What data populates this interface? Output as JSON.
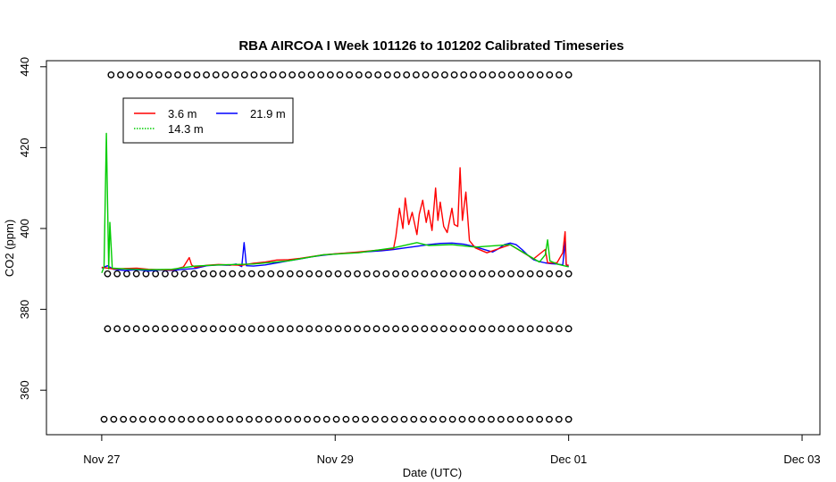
{
  "chart_data": {
    "type": "line",
    "title": "RBA AIRCOA I  Week 101126 to 101202  Calibrated Timeseries",
    "xlabel": "Date (UTC)",
    "ylabel": "CO2 (ppm)",
    "xlim": [
      "Nov 26 12:40",
      "Dec 03 03:40"
    ],
    "ylim": [
      349.0,
      441.5
    ],
    "x_ticks": [
      {
        "label": "Nov 27",
        "value": 0
      },
      {
        "label": "Nov 29",
        "value": 2
      },
      {
        "label": "Dec 01",
        "value": 4
      },
      {
        "label": "Dec 03",
        "value": 6
      }
    ],
    "y_ticks": [
      360,
      380,
      400,
      420,
      440
    ],
    "legend": {
      "placement": "top-left",
      "entries": [
        {
          "label": "3.6 m",
          "color": "#ff0000",
          "style": "solid"
        },
        {
          "label": "21.9 m",
          "color": "#0000ff",
          "style": "solid"
        },
        {
          "label": "14.3 m",
          "color": "#00cc00",
          "style": "dotted"
        }
      ]
    },
    "series": [
      {
        "name": "21.9 m",
        "color": "#0000ff",
        "points": [
          [
            0.0,
            390.2
          ],
          [
            0.05,
            390.8
          ],
          [
            0.1,
            389.9
          ],
          [
            0.2,
            389.6
          ],
          [
            0.3,
            389.8
          ],
          [
            0.4,
            389.5
          ],
          [
            0.5,
            389.7
          ],
          [
            0.6,
            389.6
          ],
          [
            0.7,
            389.9
          ],
          [
            0.8,
            390.1
          ],
          [
            0.9,
            390.8
          ],
          [
            1.0,
            391.0
          ],
          [
            1.1,
            390.9
          ],
          [
            1.15,
            391.2
          ],
          [
            1.2,
            390.6
          ],
          [
            1.22,
            396.5
          ],
          [
            1.24,
            390.8
          ],
          [
            1.3,
            390.7
          ],
          [
            1.4,
            391.0
          ],
          [
            1.5,
            391.5
          ],
          [
            1.6,
            392.0
          ],
          [
            1.7,
            392.5
          ],
          [
            1.8,
            393.0
          ],
          [
            1.9,
            393.4
          ],
          [
            2.0,
            393.7
          ],
          [
            2.1,
            393.9
          ],
          [
            2.2,
            394.1
          ],
          [
            2.3,
            394.3
          ],
          [
            2.4,
            394.5
          ],
          [
            2.5,
            394.8
          ],
          [
            2.6,
            395.2
          ],
          [
            2.7,
            395.6
          ],
          [
            2.8,
            396.0
          ],
          [
            2.9,
            396.3
          ],
          [
            3.0,
            396.4
          ],
          [
            3.1,
            396.1
          ],
          [
            3.2,
            395.5
          ],
          [
            3.3,
            394.6
          ],
          [
            3.35,
            394.2
          ],
          [
            3.4,
            395.0
          ],
          [
            3.45,
            396.0
          ],
          [
            3.5,
            396.4
          ],
          [
            3.55,
            396.0
          ],
          [
            3.6,
            394.8
          ],
          [
            3.65,
            393.4
          ],
          [
            3.7,
            392.3
          ],
          [
            3.75,
            391.8
          ],
          [
            3.8,
            391.5
          ],
          [
            3.85,
            391.3
          ],
          [
            3.9,
            391.2
          ],
          [
            3.95,
            391.0
          ],
          [
            3.97,
            396.8
          ],
          [
            3.98,
            391.0
          ],
          [
            4.0,
            390.6
          ]
        ]
      },
      {
        "name": "3.6 m",
        "color": "#ff0000",
        "points": [
          [
            0.0,
            390.4
          ],
          [
            0.1,
            390.0
          ],
          [
            0.2,
            390.1
          ],
          [
            0.3,
            390.2
          ],
          [
            0.4,
            389.9
          ],
          [
            0.5,
            389.8
          ],
          [
            0.6,
            389.7
          ],
          [
            0.7,
            390.5
          ],
          [
            0.75,
            392.8
          ],
          [
            0.77,
            391.0
          ],
          [
            0.8,
            390.4
          ],
          [
            0.9,
            390.9
          ],
          [
            1.0,
            391.1
          ],
          [
            1.2,
            390.9
          ],
          [
            1.3,
            391.4
          ],
          [
            1.4,
            391.7
          ],
          [
            1.5,
            392.2
          ],
          [
            1.6,
            392.3
          ],
          [
            1.7,
            392.6
          ],
          [
            1.9,
            393.5
          ],
          [
            2.2,
            394.2
          ],
          [
            2.5,
            395.0
          ],
          [
            2.52,
            398.0
          ],
          [
            2.55,
            405.0
          ],
          [
            2.58,
            400.0
          ],
          [
            2.6,
            407.5
          ],
          [
            2.63,
            401.0
          ],
          [
            2.66,
            404.0
          ],
          [
            2.7,
            398.5
          ],
          [
            2.72,
            403.5
          ],
          [
            2.75,
            407.0
          ],
          [
            2.78,
            401.5
          ],
          [
            2.8,
            404.5
          ],
          [
            2.83,
            399.5
          ],
          [
            2.86,
            410.0
          ],
          [
            2.88,
            402.0
          ],
          [
            2.9,
            406.5
          ],
          [
            2.93,
            400.5
          ],
          [
            2.96,
            399.0
          ],
          [
            3.0,
            405.0
          ],
          [
            3.02,
            401.0
          ],
          [
            3.05,
            400.5
          ],
          [
            3.07,
            415.0
          ],
          [
            3.09,
            402.0
          ],
          [
            3.12,
            409.0
          ],
          [
            3.15,
            397.0
          ],
          [
            3.2,
            395.2
          ],
          [
            3.3,
            394.0
          ],
          [
            3.4,
            395.0
          ],
          [
            3.5,
            396.0
          ],
          [
            3.7,
            392.5
          ],
          [
            3.8,
            394.8
          ],
          [
            3.82,
            391.5
          ],
          [
            3.9,
            391.5
          ],
          [
            3.95,
            394.0
          ],
          [
            3.97,
            399.2
          ],
          [
            3.98,
            391.0
          ],
          [
            4.0,
            390.9
          ]
        ]
      },
      {
        "name": "14.3 m",
        "color": "#00cc00",
        "points": [
          [
            0.0,
            389.0
          ],
          [
            0.02,
            390.5
          ],
          [
            0.04,
            423.5
          ],
          [
            0.06,
            390.0
          ],
          [
            0.07,
            401.5
          ],
          [
            0.09,
            390.2
          ],
          [
            0.2,
            390.0
          ],
          [
            0.4,
            389.8
          ],
          [
            0.6,
            389.9
          ],
          [
            0.8,
            390.7
          ],
          [
            1.0,
            391.0
          ],
          [
            1.3,
            391.2
          ],
          [
            1.6,
            392.0
          ],
          [
            1.9,
            393.5
          ],
          [
            2.2,
            394.0
          ],
          [
            2.5,
            395.2
          ],
          [
            2.7,
            396.5
          ],
          [
            2.8,
            395.8
          ],
          [
            3.0,
            396.0
          ],
          [
            3.2,
            395.4
          ],
          [
            3.5,
            396.0
          ],
          [
            3.75,
            391.7
          ],
          [
            3.8,
            393.5
          ],
          [
            3.82,
            397.2
          ],
          [
            3.84,
            392.0
          ],
          [
            3.9,
            391.2
          ],
          [
            4.0,
            390.5
          ]
        ]
      }
    ],
    "calibration_rows": [
      {
        "y": 438.0,
        "x_start": 0.08,
        "x_end": 4.0,
        "count": 49
      },
      {
        "y": 388.8,
        "x_start": 0.05,
        "x_end": 4.0,
        "count": 49
      },
      {
        "y": 375.2,
        "x_start": 0.05,
        "x_end": 4.0,
        "count": 49
      },
      {
        "y": 352.8,
        "x_start": 0.02,
        "x_end": 4.0,
        "count": 49
      }
    ]
  }
}
